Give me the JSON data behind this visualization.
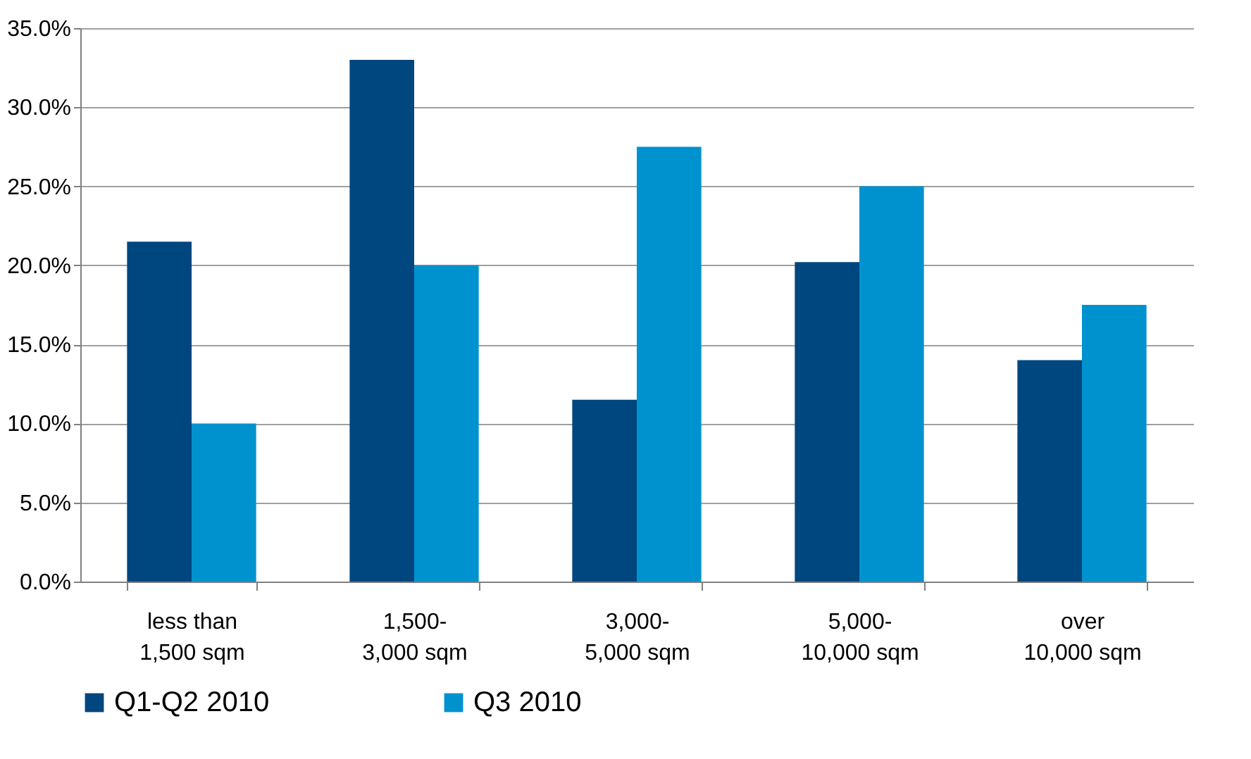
{
  "chart_data": {
    "type": "bar",
    "categories": [
      "less than\n1,500 sqm",
      "1,500-\n3,000 sqm",
      "3,000-\n5,000 sqm",
      "5,000-\n10,000 sqm",
      "over\n10,000 sqm"
    ],
    "series": [
      {
        "name": "Q1-Q2 2010",
        "color": "#00467f",
        "values": [
          21.5,
          33.0,
          11.5,
          20.2,
          14.0
        ]
      },
      {
        "name": "Q3 2010",
        "color": "#0092cf",
        "values": [
          10.0,
          20.0,
          27.5,
          25.0,
          17.5
        ]
      }
    ],
    "ylim": [
      0,
      35
    ],
    "yticks": [
      {
        "value": 0,
        "label": "0.0%"
      },
      {
        "value": 5,
        "label": "5.0%"
      },
      {
        "value": 10,
        "label": "10.0%"
      },
      {
        "value": 15,
        "label": "15.0%"
      },
      {
        "value": 20,
        "label": "20.0%"
      },
      {
        "value": 25,
        "label": "25.0%"
      },
      {
        "value": 30,
        "label": "30.0%"
      },
      {
        "value": 35,
        "label": "35.0%"
      }
    ],
    "grid": "y",
    "legend": "bottom"
  }
}
